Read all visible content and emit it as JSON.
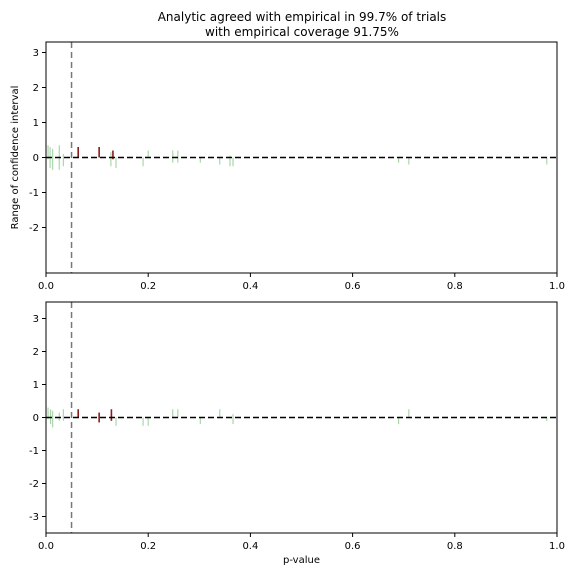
{
  "chart_data": [
    {
      "type": "line",
      "title_line1": "Analytic agreed with empirical in 99.7% of trials",
      "title_line2": "with empirical coverage 91.75%",
      "xlabel": "",
      "ylabel": "Range of confidence interval",
      "xlim": [
        0,
        1
      ],
      "ylim": [
        -3.3,
        3.3
      ],
      "xticks": [
        "0.0",
        "0.2",
        "0.4",
        "0.6",
        "0.8",
        "1.0"
      ],
      "yticks": [
        "-2",
        "-1",
        "0",
        "1",
        "2",
        "3"
      ],
      "reference_lines": {
        "vertical_x": 0.05,
        "horizontal_y": 0
      },
      "colors": {
        "agree": "#8fc98f",
        "disagree": "#8b1a1a",
        "reference": "#000000",
        "alpha_line": "#777777"
      },
      "intervals": [
        {
          "x": 0.004,
          "lo": -0.05,
          "hi": 0.35,
          "miss": false
        },
        {
          "x": 0.008,
          "lo": -0.3,
          "hi": 0.3,
          "miss": false
        },
        {
          "x": 0.013,
          "lo": -0.35,
          "hi": 0.25,
          "miss": false
        },
        {
          "x": 0.026,
          "lo": -0.35,
          "hi": 0.35,
          "miss": false
        },
        {
          "x": 0.034,
          "lo": -0.25,
          "hi": 0.1,
          "miss": false
        },
        {
          "x": 0.063,
          "lo": 0.0,
          "hi": 0.3,
          "miss": true
        },
        {
          "x": 0.104,
          "lo": 0.0,
          "hi": 0.3,
          "miss": true
        },
        {
          "x": 0.127,
          "lo": -0.25,
          "hi": 0.15,
          "miss": false
        },
        {
          "x": 0.131,
          "lo": -0.05,
          "hi": 0.2,
          "miss": true
        },
        {
          "x": 0.137,
          "lo": -0.3,
          "hi": 0.0,
          "miss": false
        },
        {
          "x": 0.19,
          "lo": -0.25,
          "hi": 0.0,
          "miss": false
        },
        {
          "x": 0.2,
          "lo": 0.0,
          "hi": 0.2,
          "miss": false
        },
        {
          "x": 0.248,
          "lo": -0.15,
          "hi": 0.2,
          "miss": false
        },
        {
          "x": 0.258,
          "lo": -0.15,
          "hi": 0.2,
          "miss": false
        },
        {
          "x": 0.302,
          "lo": -0.15,
          "hi": 0.0,
          "miss": false
        },
        {
          "x": 0.34,
          "lo": -0.2,
          "hi": 0.0,
          "miss": false
        },
        {
          "x": 0.36,
          "lo": -0.25,
          "hi": 0.05,
          "miss": false
        },
        {
          "x": 0.366,
          "lo": -0.25,
          "hi": 0.0,
          "miss": false
        },
        {
          "x": 0.69,
          "lo": -0.15,
          "hi": 0.0,
          "miss": false
        },
        {
          "x": 0.71,
          "lo": -0.2,
          "hi": 0.0,
          "miss": false
        },
        {
          "x": 0.98,
          "lo": -0.2,
          "hi": 0.0,
          "miss": false
        }
      ]
    },
    {
      "type": "line",
      "xlabel": "p-value",
      "ylabel": "",
      "xlim": [
        0,
        1
      ],
      "ylim": [
        -3.5,
        3.5
      ],
      "xticks": [
        "0.0",
        "0.2",
        "0.4",
        "0.6",
        "0.8",
        "1.0"
      ],
      "yticks": [
        "-3",
        "-2",
        "-1",
        "0",
        "1",
        "2",
        "3"
      ],
      "reference_lines": {
        "vertical_x": 0.05,
        "horizontal_y": 0
      },
      "colors": {
        "agree": "#8fc98f",
        "disagree": "#8b1a1a",
        "reference": "#000000",
        "alpha_line": "#777777"
      },
      "intervals": [
        {
          "x": 0.004,
          "lo": -0.05,
          "hi": 0.3,
          "miss": false
        },
        {
          "x": 0.009,
          "lo": -0.2,
          "hi": 0.25,
          "miss": false
        },
        {
          "x": 0.013,
          "lo": -0.3,
          "hi": 0.2,
          "miss": false
        },
        {
          "x": 0.026,
          "lo": -0.1,
          "hi": 0.15,
          "miss": false
        },
        {
          "x": 0.034,
          "lo": -0.1,
          "hi": 0.25,
          "miss": false
        },
        {
          "x": 0.063,
          "lo": 0.0,
          "hi": 0.25,
          "miss": true
        },
        {
          "x": 0.104,
          "lo": -0.15,
          "hi": 0.15,
          "miss": true
        },
        {
          "x": 0.128,
          "lo": -0.1,
          "hi": 0.25,
          "miss": true
        },
        {
          "x": 0.137,
          "lo": -0.25,
          "hi": 0.0,
          "miss": false
        },
        {
          "x": 0.19,
          "lo": -0.25,
          "hi": 0.0,
          "miss": false
        },
        {
          "x": 0.2,
          "lo": -0.25,
          "hi": 0.0,
          "miss": false
        },
        {
          "x": 0.248,
          "lo": 0.0,
          "hi": 0.25,
          "miss": false
        },
        {
          "x": 0.258,
          "lo": 0.0,
          "hi": 0.25,
          "miss": false
        },
        {
          "x": 0.302,
          "lo": -0.2,
          "hi": 0.0,
          "miss": false
        },
        {
          "x": 0.34,
          "lo": 0.0,
          "hi": 0.25,
          "miss": false
        },
        {
          "x": 0.366,
          "lo": -0.2,
          "hi": 0.1,
          "miss": false
        },
        {
          "x": 0.69,
          "lo": -0.2,
          "hi": 0.0,
          "miss": false
        },
        {
          "x": 0.71,
          "lo": 0.0,
          "hi": 0.25,
          "miss": false
        },
        {
          "x": 0.98,
          "lo": -0.1,
          "hi": 0.0,
          "miss": false
        }
      ]
    }
  ]
}
